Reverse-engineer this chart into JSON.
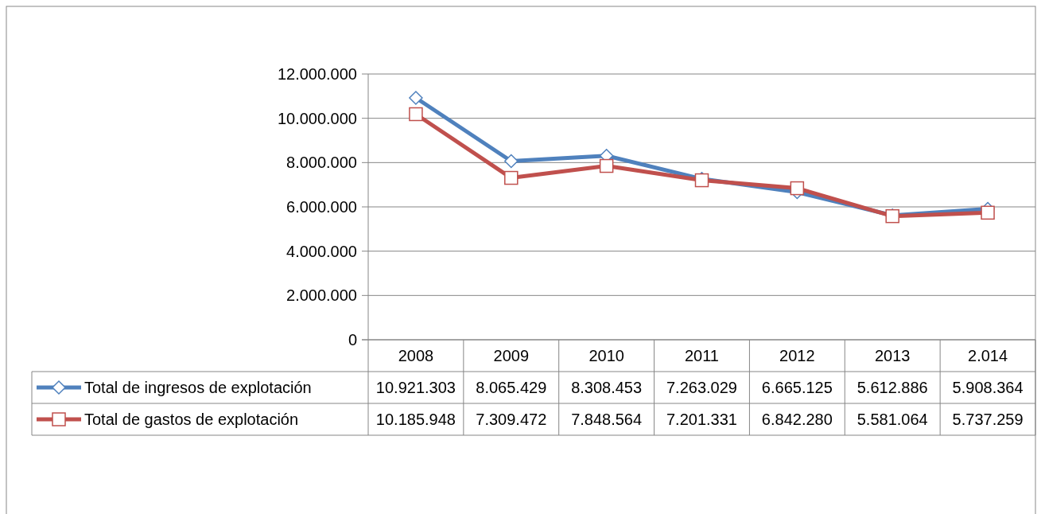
{
  "chart_data": {
    "type": "line",
    "categories": [
      "2008",
      "2009",
      "2010",
      "2011",
      "2012",
      "2013",
      "2.014"
    ],
    "series": [
      {
        "name": "Total de ingresos de explotación",
        "color": "#4f81bd",
        "marker": "diamond",
        "values": [
          10921303,
          8065429,
          8308453,
          7263029,
          6665125,
          5612886,
          5908364
        ],
        "value_labels": [
          "10.921.303",
          "8.065.429",
          "8.308.453",
          "7.263.029",
          "6.665.125",
          "5.612.886",
          "5.908.364"
        ]
      },
      {
        "name": "Total de gastos de explotación",
        "color": "#c0504d",
        "marker": "square",
        "values": [
          10185948,
          7309472,
          7848564,
          7201331,
          6842280,
          5581064,
          5737259
        ],
        "value_labels": [
          "10.185.948",
          "7.309.472",
          "7.848.564",
          "7.201.331",
          "6.842.280",
          "5.581.064",
          "5.737.259"
        ]
      }
    ],
    "ylim": [
      0,
      12000000
    ],
    "yticks": [
      0,
      {
        "value": 2000000,
        "label": "2.000.000"
      },
      {
        "value": 4000000,
        "label": "4.000.000"
      },
      {
        "value": 6000000,
        "label": "6.000.000"
      },
      {
        "value": 8000000,
        "label": "8.000.000"
      },
      {
        "value": 10000000,
        "label": "10.000.000"
      },
      {
        "value": 12000000,
        "label": "12.000.000"
      }
    ],
    "grid": "y",
    "legend": "bottom",
    "line_style": "solid"
  }
}
